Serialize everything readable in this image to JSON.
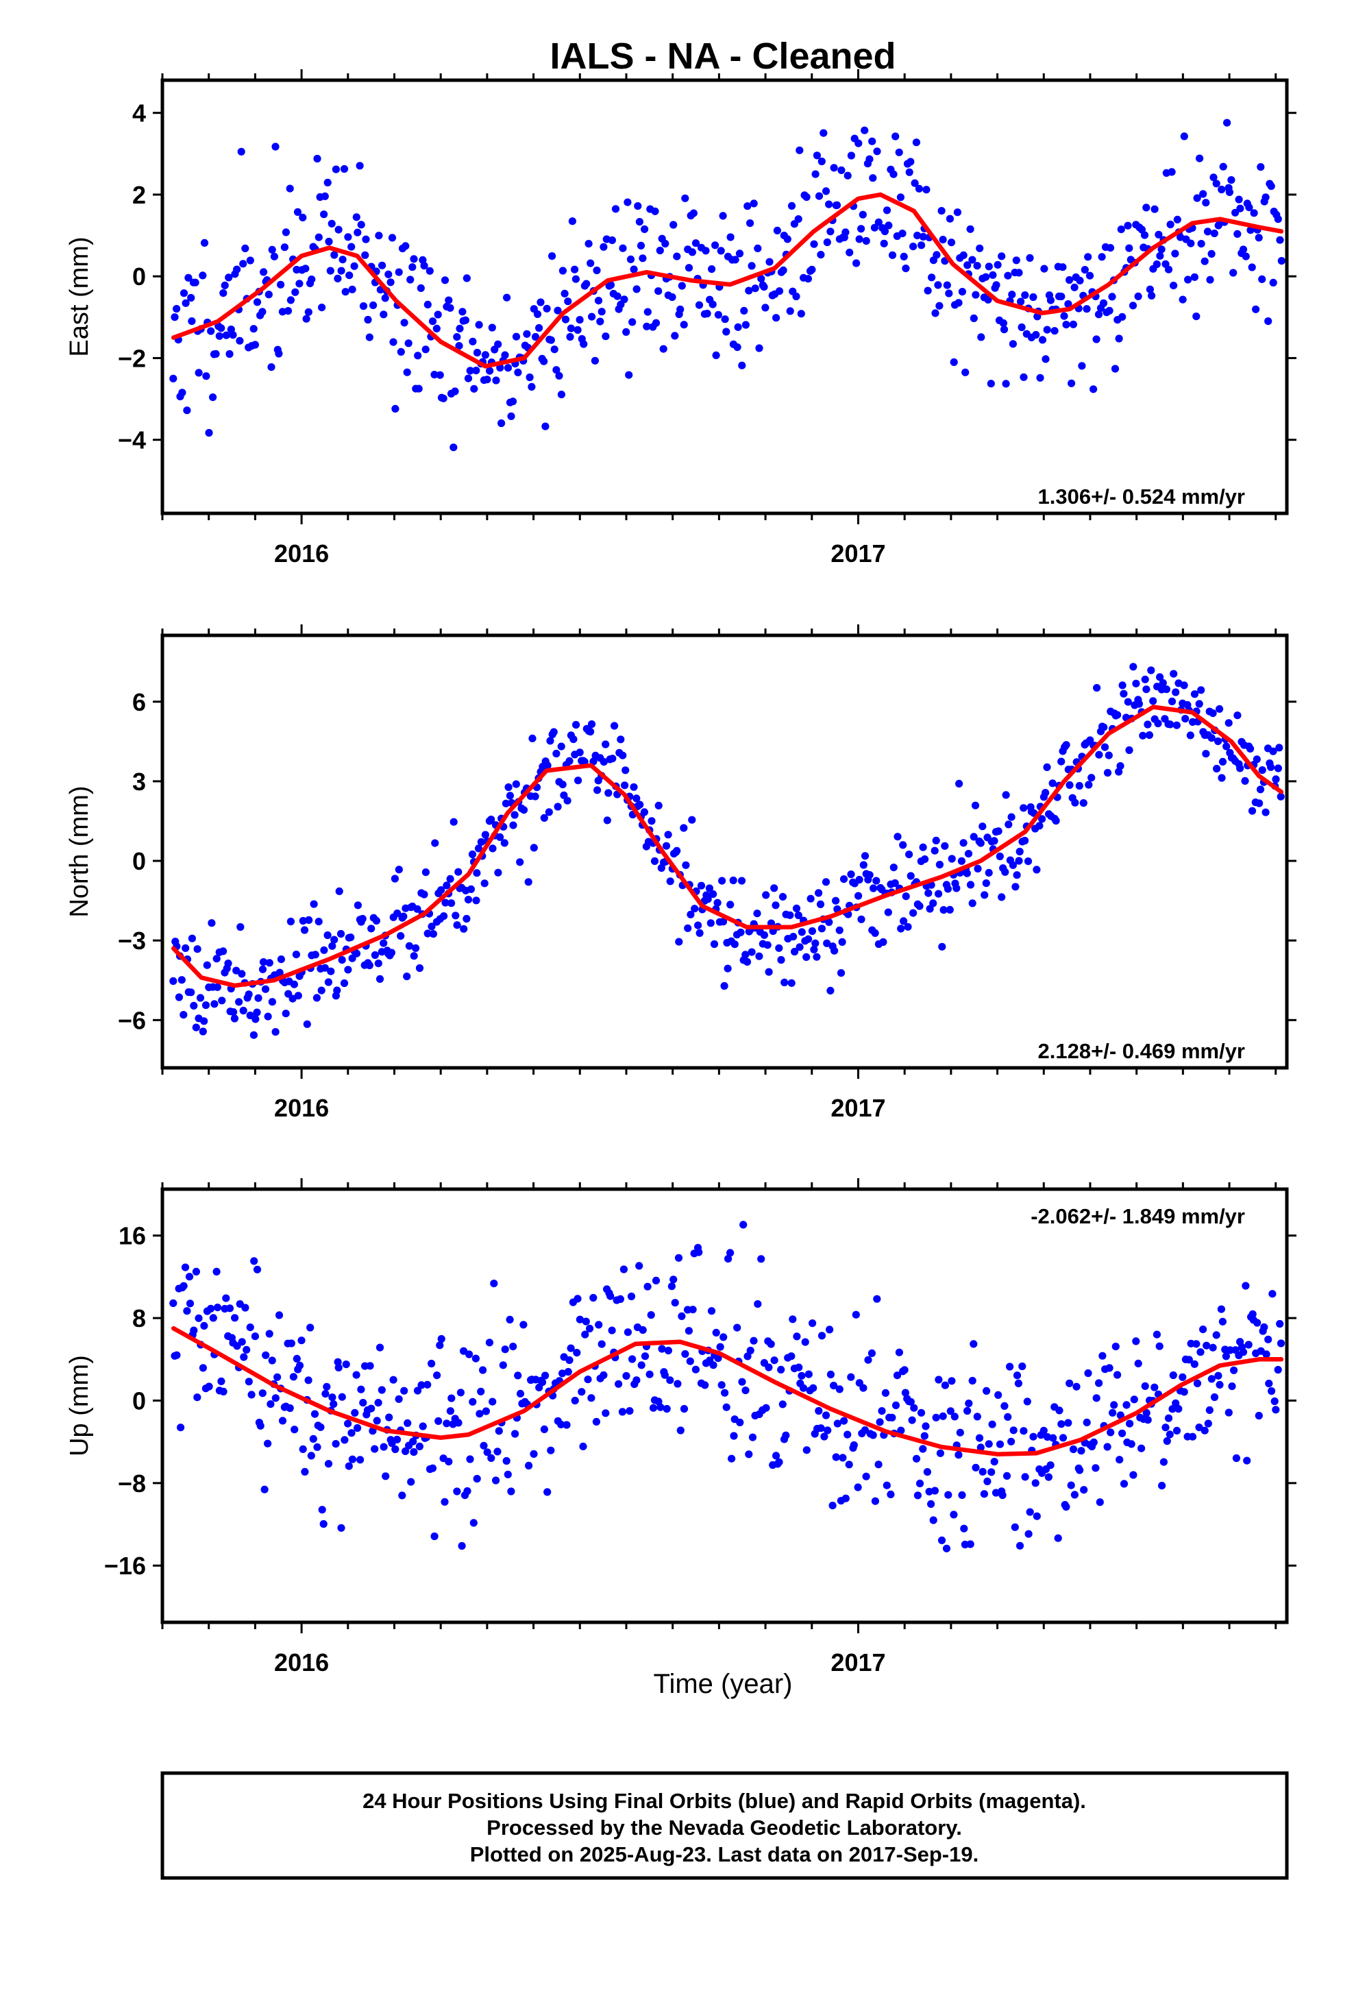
{
  "title": "IALS  - NA - Cleaned",
  "xlabel": "Time (year)",
  "colors": {
    "points": "#0000ff",
    "fit": "#ff0000",
    "frame": "#000000"
  },
  "footer": {
    "lines": [
      "24 Hour Positions Using Final Orbits (blue) and Rapid Orbits (magenta).",
      "Processed by the Nevada Geodetic Laboratory.",
      "Plotted on 2025-Aug-23. Last data on 2017-Sep-19."
    ]
  },
  "chart_data": [
    {
      "type": "scatter",
      "name": "east",
      "ylabel": "East (mm)",
      "rate_label": "1.306+/- 0.524 mm/yr",
      "rate_position": "bottom-right",
      "xlim": [
        2015.75,
        2017.77
      ],
      "ylim": [
        -5.8,
        4.8
      ],
      "yticks": [
        -4,
        -2,
        0,
        2,
        4
      ],
      "xticks": [
        2016,
        2017
      ],
      "fit_curve": {
        "x": [
          2015.77,
          2015.85,
          2015.93,
          2016.0,
          2016.05,
          2016.1,
          2016.17,
          2016.25,
          2016.33,
          2016.4,
          2016.47,
          2016.55,
          2016.62,
          2016.7,
          2016.77,
          2016.85,
          2016.92,
          2017.0,
          2017.04,
          2017.1,
          2017.17,
          2017.25,
          2017.33,
          2017.38,
          2017.45,
          2017.53,
          2017.6,
          2017.65,
          2017.72,
          2017.76
        ],
        "y": [
          -1.5,
          -1.1,
          -0.3,
          0.5,
          0.7,
          0.5,
          -0.6,
          -1.6,
          -2.2,
          -2.0,
          -0.9,
          -0.1,
          0.1,
          -0.1,
          -0.2,
          0.2,
          1.1,
          1.9,
          2.0,
          1.6,
          0.3,
          -0.6,
          -0.9,
          -0.8,
          -0.2,
          0.7,
          1.3,
          1.4,
          1.2,
          1.1
        ]
      },
      "scatter": {
        "n": 650,
        "noise": 1.05,
        "seed": 11
      }
    },
    {
      "type": "scatter",
      "name": "north",
      "ylabel": "North (mm)",
      "rate_label": "2.128+/- 0.469 mm/yr",
      "rate_position": "bottom-right",
      "xlim": [
        2015.75,
        2017.77
      ],
      "ylim": [
        -7.8,
        8.5
      ],
      "yticks": [
        -6,
        -3,
        0,
        3,
        6
      ],
      "xticks": [
        2016,
        2017
      ],
      "fit_curve": {
        "x": [
          2015.77,
          2015.82,
          2015.88,
          2015.95,
          2016.05,
          2016.15,
          2016.22,
          2016.3,
          2016.37,
          2016.44,
          2016.52,
          2016.58,
          2016.65,
          2016.72,
          2016.8,
          2016.88,
          2016.95,
          2017.05,
          2017.15,
          2017.22,
          2017.3,
          2017.37,
          2017.45,
          2017.53,
          2017.6,
          2017.67,
          2017.72,
          2017.76
        ],
        "y": [
          -3.3,
          -4.4,
          -4.7,
          -4.5,
          -3.7,
          -2.8,
          -2.0,
          -0.5,
          1.8,
          3.4,
          3.6,
          2.5,
          0.3,
          -1.7,
          -2.5,
          -2.5,
          -2.1,
          -1.3,
          -0.6,
          0.0,
          1.1,
          3.0,
          4.8,
          5.8,
          5.6,
          4.5,
          3.2,
          2.6
        ]
      },
      "scatter": {
        "n": 650,
        "noise": 0.95,
        "seed": 23
      }
    },
    {
      "type": "scatter",
      "name": "up",
      "ylabel": "Up (mm)",
      "rate_label": "-2.062+/- 1.849 mm/yr",
      "rate_position": "top-right",
      "xlim": [
        2015.75,
        2017.77
      ],
      "ylim": [
        -21.5,
        20.5
      ],
      "yticks": [
        -16,
        -8,
        0,
        8,
        16
      ],
      "xticks": [
        2016,
        2017
      ],
      "fit_curve": {
        "x": [
          2015.77,
          2015.85,
          2015.95,
          2016.05,
          2016.15,
          2016.25,
          2016.3,
          2016.4,
          2016.5,
          2016.6,
          2016.68,
          2016.75,
          2016.85,
          2016.95,
          2017.05,
          2017.15,
          2017.25,
          2017.32,
          2017.4,
          2017.5,
          2017.58,
          2017.65,
          2017.72,
          2017.76
        ],
        "y": [
          7.0,
          4.6,
          1.5,
          -1.0,
          -2.9,
          -3.6,
          -3.3,
          -1.0,
          2.8,
          5.5,
          5.7,
          4.6,
          1.8,
          -0.8,
          -3.0,
          -4.5,
          -5.2,
          -5.1,
          -3.8,
          -1.2,
          1.5,
          3.4,
          4.0,
          4.0
        ]
      },
      "scatter": {
        "n": 650,
        "noise": 4.5,
        "seed": 37
      }
    }
  ]
}
